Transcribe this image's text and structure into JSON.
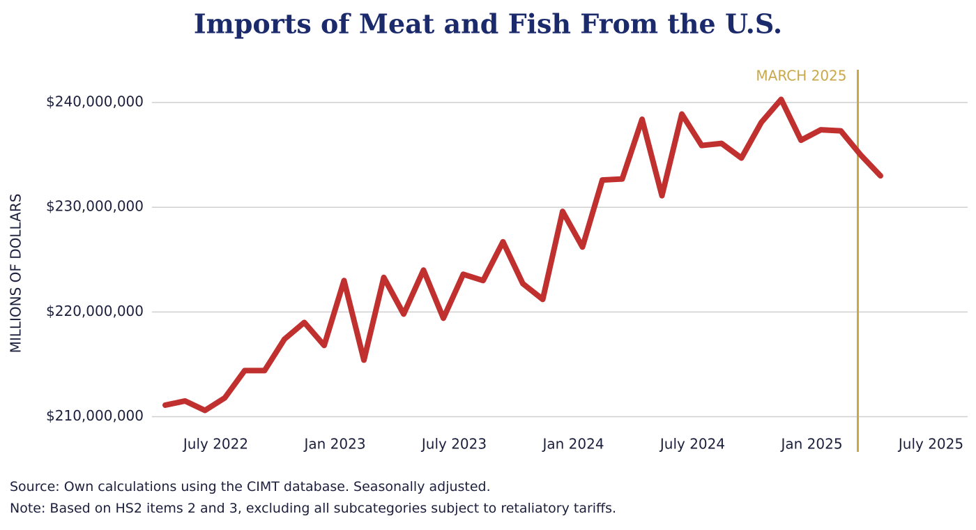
{
  "chart_data": {
    "type": "line",
    "title": "Imports of Meat and Fish From the U.S.",
    "y_label": "MILLIONS OF DOLLARS",
    "source": "Source: Own calculations using the CIMT database. Seasonally adjusted.",
    "note": "Note: Based on HS2 items 2 and 3, excluding all subcategories subject to retaliatory tariffs.",
    "categories": [
      null,
      null,
      null,
      "July 2022",
      null,
      null,
      null,
      null,
      null,
      "Jan 2023",
      null,
      null,
      null,
      null,
      null,
      "July 2023",
      null,
      null,
      null,
      null,
      null,
      "Jan 2024",
      null,
      null,
      null,
      null,
      null,
      "July 2024",
      null,
      null,
      null,
      null,
      null,
      "Jan 2025",
      null,
      null,
      null,
      null,
      null,
      "July 2025"
    ],
    "series": [
      {
        "name": "Imports",
        "color": "#c0302f",
        "values": [
          211100000,
          211500000,
          210600000,
          211800000,
          214400000,
          214400000,
          217400000,
          219000000,
          216800000,
          223000000,
          215400000,
          223300000,
          219800000,
          224000000,
          219400000,
          223600000,
          223000000,
          226700000,
          222700000,
          221200000,
          229600000,
          226200000,
          232600000,
          232700000,
          238400000,
          231100000,
          238900000,
          235900000,
          236100000,
          234700000,
          238100000,
          240300000,
          236400000,
          237400000,
          237300000,
          235000000,
          233000000,
          null,
          null,
          null
        ]
      }
    ],
    "marker": {
      "label": "MARCH 2025",
      "index": 35,
      "color": "#c9a84a"
    },
    "ylim": [
      208500000,
      243000000
    ],
    "yticks": [
      {
        "value": 210000000,
        "label": "$210,000,000"
      },
      {
        "value": 220000000,
        "label": "$220,000,000"
      },
      {
        "value": 230000000,
        "label": "$230,000,000"
      },
      {
        "value": 240000000,
        "label": "$240,000,000"
      }
    ],
    "grid": true
  }
}
